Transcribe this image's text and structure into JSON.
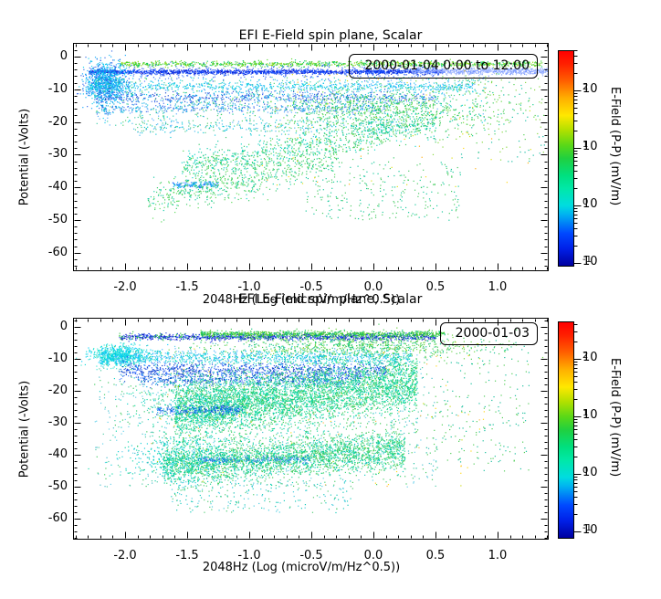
{
  "figure": {
    "background": "#ffffff",
    "panels": [
      {
        "title": "EFI  E-Field spin plane, Scalar",
        "legend_label": "2000-01-04 0:00 to 12:00",
        "xlabel": "2048Hz (Log (microV/m/Hz^0.5))",
        "ylabel": "Potential (-Volts)",
        "xtick_labels": [
          "-2.0",
          "-1.5",
          "-1.0",
          "-0.5",
          "0.0",
          "0.5",
          "1.0"
        ],
        "ytick_labels": [
          "0",
          "-10",
          "-20",
          "-30",
          "-40",
          "-50",
          "-60"
        ]
      },
      {
        "title": "EFI  E-Field spin plane, Scalar",
        "legend_label": "2000-01-03",
        "xlabel": "2048Hz (Log (microV/m/Hz^0.5))",
        "ylabel": "Potential (-Volts)",
        "xtick_labels": [
          "-2.0",
          "-1.5",
          "-1.0",
          "-0.5",
          "0.0",
          "0.5",
          "1.0"
        ],
        "ytick_labels": [
          "0",
          "-10",
          "-20",
          "-30",
          "-40",
          "-50",
          "-60"
        ]
      }
    ],
    "colorbar": {
      "label": "E-Field (P-P) (mV/m)",
      "tick_base": "10",
      "tick_exponents": [
        "-1",
        "0",
        "1",
        "2"
      ],
      "ramp": [
        [
          0,
          "#0000a0"
        ],
        [
          8,
          "#0020e8"
        ],
        [
          15,
          "#0048ff"
        ],
        [
          24,
          "#00b4f0"
        ],
        [
          28,
          "#00dce0"
        ],
        [
          36,
          "#00e8a8"
        ],
        [
          42,
          "#00e080"
        ],
        [
          50,
          "#20d040"
        ],
        [
          56,
          "#58d818"
        ],
        [
          63,
          "#b0e000"
        ],
        [
          70,
          "#ffe800"
        ],
        [
          78,
          "#ffb000"
        ],
        [
          86,
          "#ff6000"
        ],
        [
          94,
          "#ff2000"
        ],
        [
          100,
          "#ff0000"
        ]
      ]
    }
  },
  "chart_data": [
    {
      "type": "scatter",
      "title": "EFI  E-Field spin plane, Scalar",
      "legend": "2000-01-04 0:00 to 12:00",
      "xlabel": "2048Hz (Log (microV/m/Hz^0.5))",
      "ylabel": "Potential (-Volts)",
      "xlim": [
        -2.42,
        1.41
      ],
      "ylim": [
        -66,
        4
      ],
      "xticks": [
        -2.0,
        -1.5,
        -1.0,
        -0.5,
        0.0,
        0.5,
        1.0
      ],
      "yticks": [
        0,
        -10,
        -20,
        -30,
        -40,
        -50,
        -60
      ],
      "grid": false,
      "colorbar": {
        "label": "E-Field (P-P) (mV/m)",
        "scale": "log",
        "ticks": [
          0.1,
          1,
          10,
          100
        ],
        "range": [
          0.1,
          500
        ]
      },
      "point_clusters": [
        {
          "shape": "band",
          "x0": -2.05,
          "x1": 1.36,
          "y": -2.1,
          "ysd": 0.45,
          "n": 1000,
          "colors": [
            "#2ecc2e",
            "#55d022",
            "#00c864",
            "#88d800"
          ]
        },
        {
          "shape": "band",
          "x0": -2.3,
          "x1": 0.55,
          "y": -4.5,
          "ysd": 0.35,
          "n": 1400,
          "colors": [
            "#0026e0",
            "#0000bb",
            "#1a50ff",
            "#0040ff"
          ]
        },
        {
          "shape": "band",
          "x0": -2.3,
          "x1": 0.55,
          "y": -4.5,
          "ysd": 1.1,
          "n": 500,
          "colors": [
            "#2255ee",
            "#4477ff"
          ]
        },
        {
          "shape": "band",
          "x0": 0.3,
          "x1": 1.4,
          "y": -4.3,
          "ysd": 0.5,
          "n": 700,
          "colors": [
            "#8fa8ff",
            "#a8bcff",
            "#6f92ff"
          ]
        },
        {
          "shape": "blob",
          "cx": -2.16,
          "cy": -8.0,
          "xsd": 0.09,
          "ysd": 3.2,
          "n": 1000,
          "colors": [
            "#00b4ee",
            "#00ccee",
            "#2a62e8",
            "#00a0ff"
          ]
        },
        {
          "shape": "band",
          "x0": -2.3,
          "x1": 0.8,
          "y": -9.0,
          "ysd": 0.8,
          "n": 700,
          "colors": [
            "#00c0e8",
            "#28a8ff",
            "#00d8d8"
          ]
        },
        {
          "shape": "band",
          "x0": -2.25,
          "x1": 0.5,
          "y": -12.3,
          "ysd": 0.9,
          "n": 650,
          "colors": [
            "#2a5cee",
            "#00a8e8",
            "#1440cc"
          ]
        },
        {
          "shape": "band",
          "x0": -2.2,
          "x1": 0.1,
          "y": -15.6,
          "ysd": 0.8,
          "n": 380,
          "colors": [
            "#3a6cee",
            "#00a0dd"
          ]
        },
        {
          "shape": "rect",
          "x0": -2.25,
          "x1": 0.9,
          "yb": -21,
          "yt": -6,
          "n": 800,
          "colors": [
            "#00ccdd",
            "#48a8ff",
            "#2cc8a0",
            "#44cc66"
          ]
        },
        {
          "shape": "band",
          "x0": -1.95,
          "x1": 0.35,
          "y": -21.5,
          "ysd": 1.0,
          "n": 300,
          "colors": [
            "#00c4d4",
            "#38b4ee",
            "#40c880"
          ]
        },
        {
          "shape": "blob",
          "cx": 0.05,
          "cy": -16,
          "xsd": 0.5,
          "ysd": 3.4,
          "n": 800,
          "colors": [
            "#30c850",
            "#00c882",
            "#58d838"
          ]
        },
        {
          "shape": "diag",
          "x0": -1.55,
          "y0": -34,
          "x1": 0.5,
          "y1": -20,
          "ysd": 2.6,
          "n": 1000,
          "colors": [
            "#2cc860",
            "#00c8a0",
            "#00d4c4",
            "#40d040"
          ]
        },
        {
          "shape": "diag",
          "x0": -1.62,
          "y0": -39.3,
          "x1": -1.25,
          "y1": -39.0,
          "ysd": 0.5,
          "n": 130,
          "colors": [
            "#2a6cff",
            "#00a8ee"
          ]
        },
        {
          "shape": "diag",
          "x0": -1.82,
          "y0": -44,
          "x1": -0.3,
          "y1": -31,
          "ysd": 2.6,
          "n": 650,
          "colors": [
            "#2cc860",
            "#00c8a0",
            "#50d850"
          ]
        },
        {
          "shape": "rect",
          "x0": -0.55,
          "x1": 0.7,
          "yb": -50,
          "yt": -32,
          "n": 260,
          "colors": [
            "#38c856",
            "#00c494"
          ]
        },
        {
          "shape": "rect",
          "x0": 0.45,
          "x1": 1.38,
          "yb": -32,
          "yt": -5,
          "n": 170,
          "colors": [
            "#44cc44",
            "#00b89c",
            "#7cd42c"
          ]
        },
        {
          "shape": "rect",
          "x0": -0.9,
          "x1": 1.3,
          "yb": -40,
          "yt": -4,
          "n": 70,
          "colors": [
            "#ffd400",
            "#ffaa00",
            "#d8dc00"
          ]
        }
      ]
    },
    {
      "type": "scatter",
      "title": "EFI  E-Field spin plane, Scalar",
      "legend": "2000-01-03",
      "xlabel": "2048Hz (Log (microV/m/Hz^0.5))",
      "ylabel": "Potential (-Volts)",
      "xlim": [
        -2.42,
        1.41
      ],
      "ylim": [
        -67,
        3
      ],
      "xticks": [
        -2.0,
        -1.5,
        -1.0,
        -0.5,
        0.0,
        0.5,
        1.0
      ],
      "yticks": [
        0,
        -10,
        -20,
        -30,
        -40,
        -50,
        -60
      ],
      "grid": false,
      "colorbar": {
        "label": "E-Field (P-P) (mV/m)",
        "scale": "log",
        "ticks": [
          0.1,
          1,
          10,
          100
        ],
        "range": [
          0.1,
          500
        ]
      },
      "point_clusters": [
        {
          "shape": "band",
          "x0": -2.05,
          "x1": 0.5,
          "y": -3.0,
          "ysd": 0.5,
          "n": 1300,
          "colors": [
            "#1030dd",
            "#0000bb",
            "#2a55ff",
            "#2cc244"
          ]
        },
        {
          "shape": "band",
          "x0": -1.4,
          "x1": 0.58,
          "y": -2.0,
          "ysd": 0.45,
          "n": 800,
          "colors": [
            "#2cc83c",
            "#58cc22",
            "#00bc68"
          ]
        },
        {
          "shape": "blob",
          "cx": -0.15,
          "cy": -6.0,
          "xsd": 0.55,
          "ysd": 2.0,
          "n": 800,
          "colors": [
            "#34c84a",
            "#00c474",
            "#60d434"
          ]
        },
        {
          "shape": "blob",
          "cx": -2.05,
          "cy": -8.8,
          "xsd": 0.11,
          "ysd": 1.6,
          "n": 700,
          "colors": [
            "#00d8d8",
            "#00ccff",
            "#30e8d0"
          ]
        },
        {
          "shape": "band",
          "x0": -2.2,
          "x1": 0.3,
          "y": -9.5,
          "ysd": 1.1,
          "n": 900,
          "colors": [
            "#00c8dd",
            "#38b0ff",
            "#00d8c4"
          ]
        },
        {
          "shape": "band",
          "x0": -2.05,
          "x1": 0.1,
          "y": -13.5,
          "ysd": 1.3,
          "n": 1000,
          "colors": [
            "#2050e8",
            "#0030c0",
            "#3878ff"
          ]
        },
        {
          "shape": "band",
          "x0": -1.9,
          "x1": -0.1,
          "y": -16.5,
          "ysd": 1.0,
          "n": 550,
          "colors": [
            "#2458e8",
            "#0044bb",
            "#00a0e8"
          ]
        },
        {
          "shape": "diag",
          "x0": -1.6,
          "y0": -26,
          "x1": 0.35,
          "y1": -17,
          "ysd": 4.5,
          "n": 4500,
          "colors": [
            "#00dc96",
            "#2cd47c",
            "#30c848",
            "#00ccb4"
          ]
        },
        {
          "shape": "blob",
          "cx": -1.35,
          "cy": -24,
          "xsd": 0.28,
          "ysd": 4.5,
          "n": 700,
          "colors": [
            "#00d8a0",
            "#00ccc0",
            "#28c868"
          ]
        },
        {
          "shape": "diag",
          "x0": -1.75,
          "y0": -26,
          "x1": -1.05,
          "y1": -25.7,
          "ysd": 0.7,
          "n": 260,
          "colors": [
            "#2a64ff",
            "#0090e8",
            "#0040d0"
          ]
        },
        {
          "shape": "diag",
          "x0": -1.7,
          "y0": -43,
          "x1": 0.25,
          "y1": -38,
          "ysd": 3.2,
          "n": 3000,
          "colors": [
            "#00d493",
            "#2cd06c",
            "#38c848",
            "#00c8b8"
          ]
        },
        {
          "shape": "blob",
          "cx": -1.55,
          "cy": -41,
          "xsd": 0.24,
          "ysd": 3.6,
          "n": 500,
          "colors": [
            "#00ccd4",
            "#00d4a4"
          ]
        },
        {
          "shape": "diag",
          "x0": -1.42,
          "y0": -41.5,
          "x1": -0.52,
          "y1": -41.2,
          "ysd": 0.6,
          "n": 180,
          "colors": [
            "#2a64ee",
            "#0090dd"
          ]
        },
        {
          "shape": "rect",
          "x0": -1.65,
          "x1": -0.15,
          "yb": -58,
          "yt": -48,
          "n": 240,
          "colors": [
            "#00c4b4",
            "#38c8dd",
            "#40c868"
          ]
        },
        {
          "shape": "rect",
          "x0": 0.3,
          "x1": 1.25,
          "yb": -45,
          "yt": -4,
          "n": 260,
          "colors": [
            "#40c848",
            "#00b894"
          ]
        },
        {
          "shape": "rect",
          "x0": -2.25,
          "x1": 0.5,
          "yb": -50,
          "yt": -5,
          "n": 900,
          "colors": [
            "#38b8c8",
            "#58cce8",
            "#40c8a0",
            "#34c858"
          ]
        },
        {
          "shape": "rect",
          "x0": -1.8,
          "x1": 0.9,
          "yb": -50,
          "yt": -3,
          "n": 120,
          "colors": [
            "#ffd400",
            "#ffb030",
            "#c8d800"
          ]
        }
      ]
    }
  ]
}
